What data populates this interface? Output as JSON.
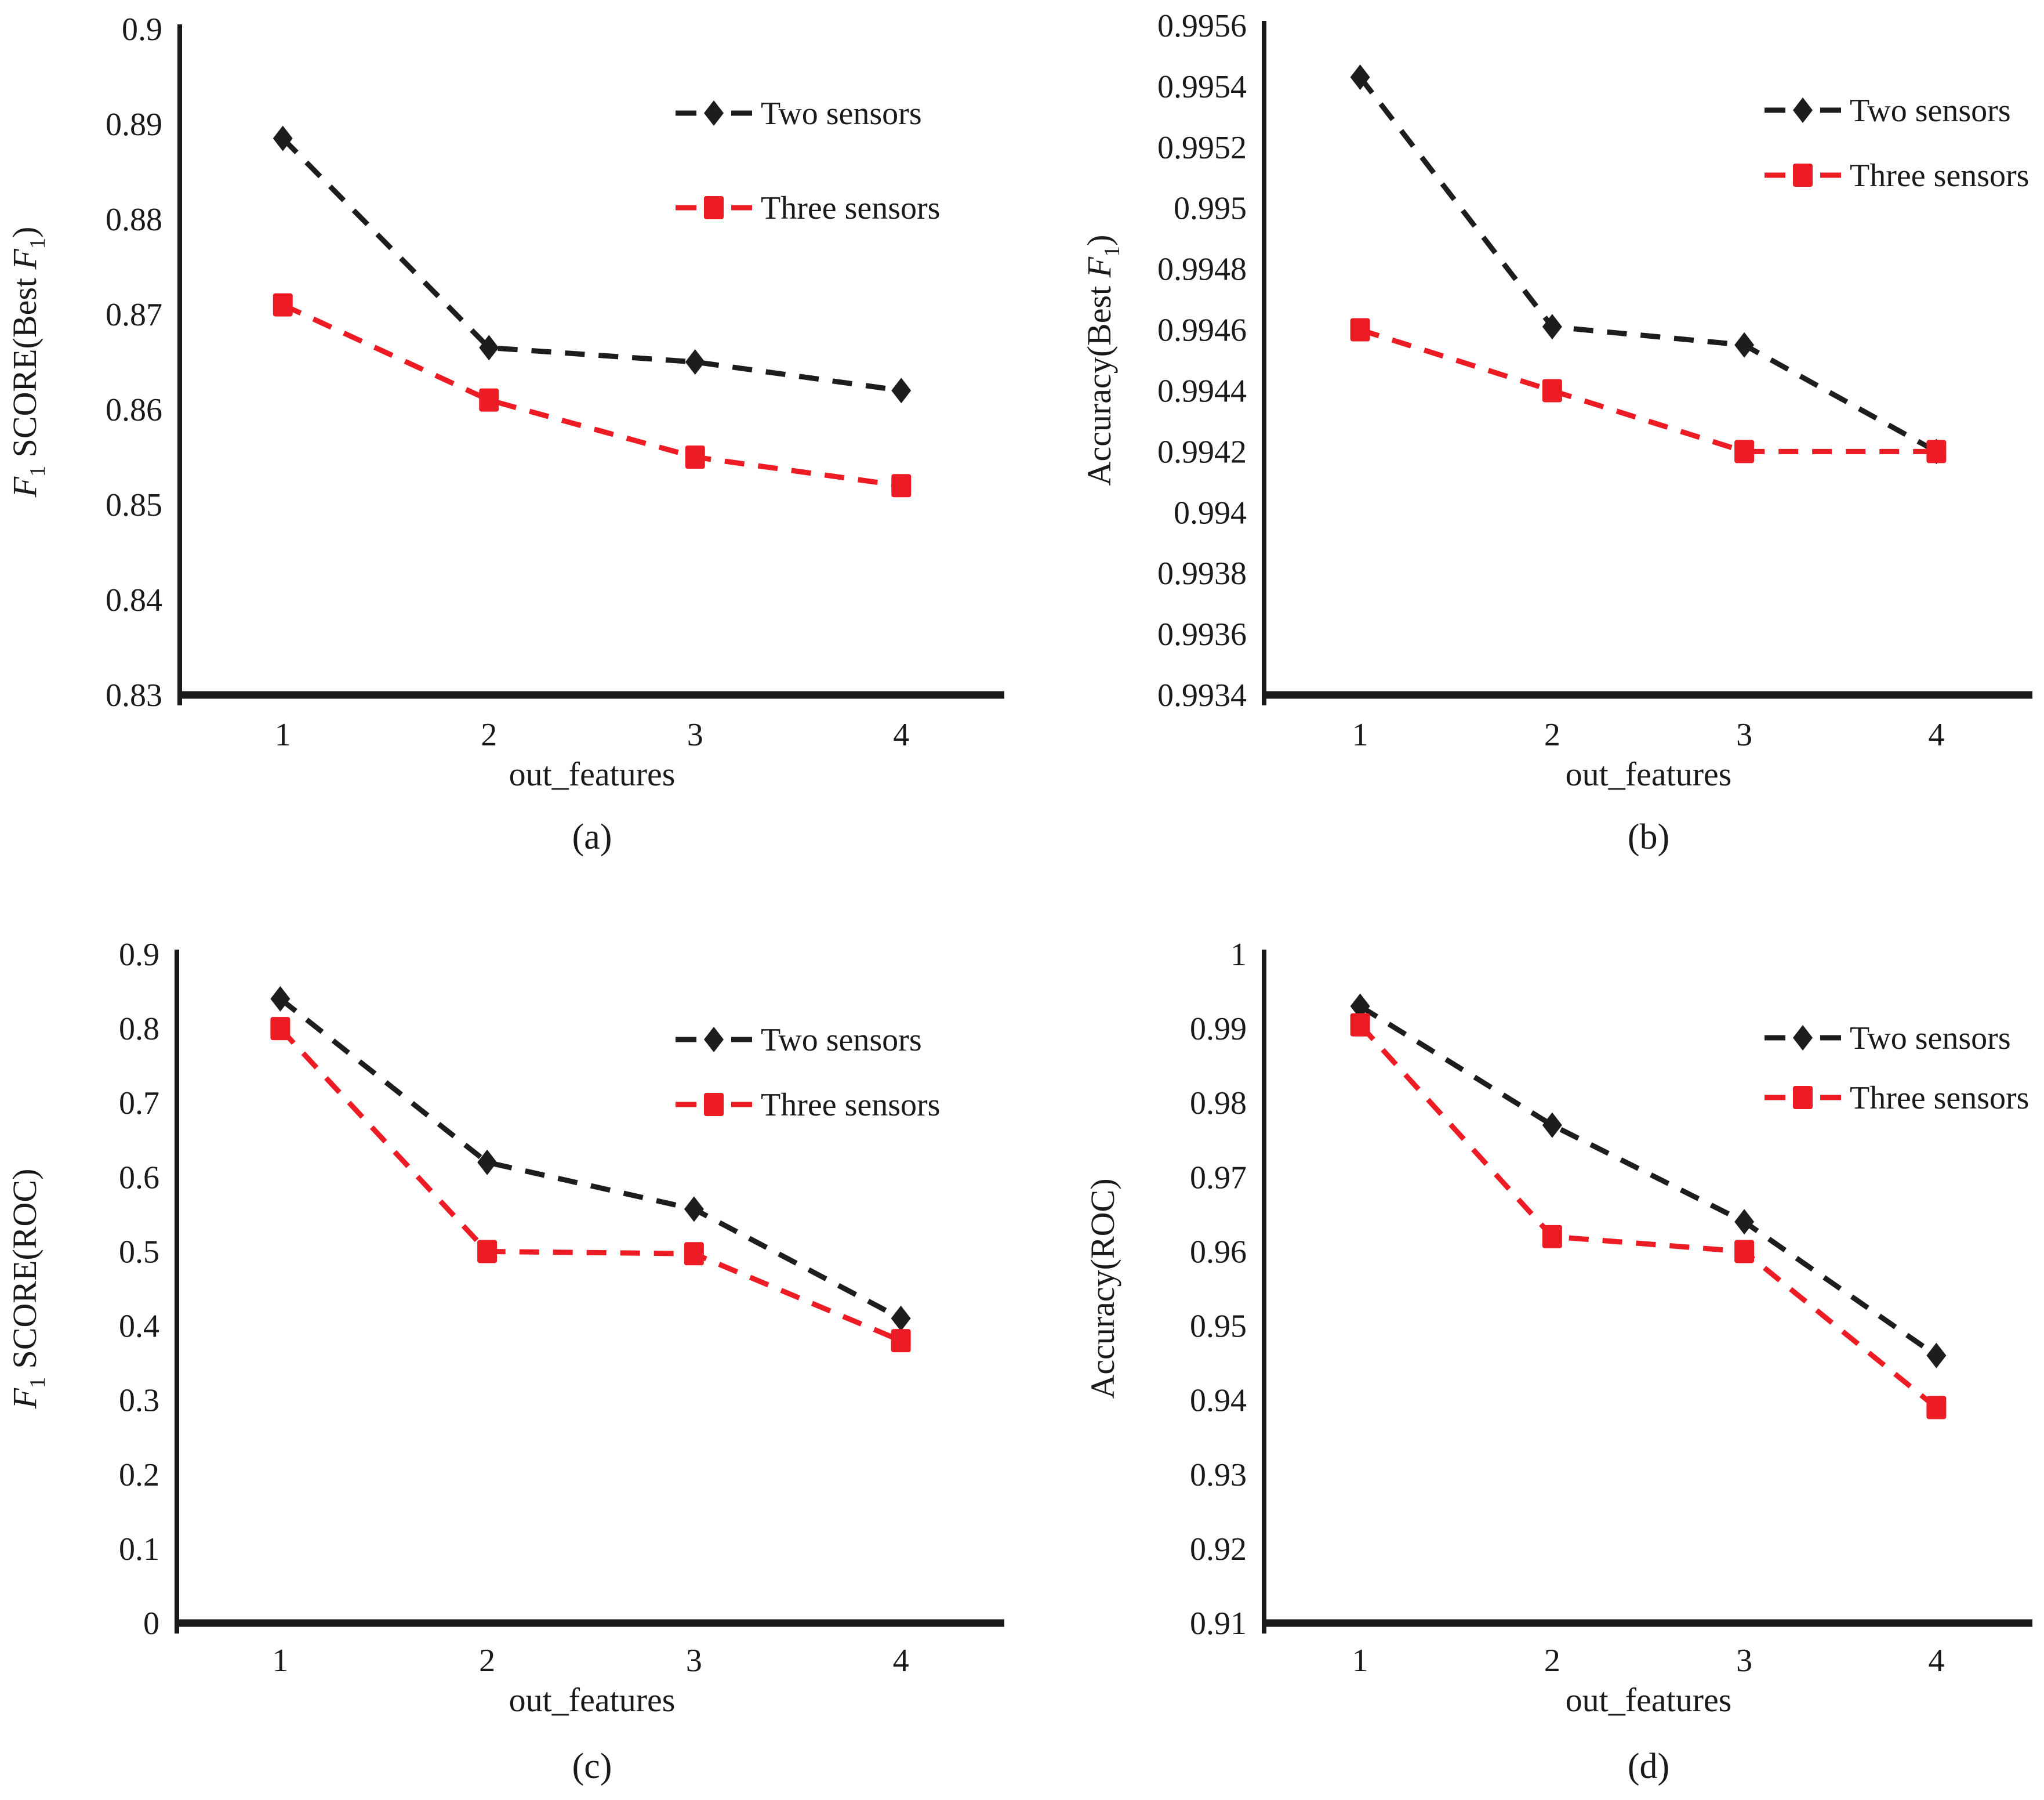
{
  "figure": {
    "background": "#ffffff",
    "text_color": "#1a1a1a",
    "series_black": "#1d1d1b",
    "series_red": "#ed1c24",
    "panel_captions": [
      "(a)",
      "(b)",
      "(c)",
      "(d)"
    ]
  },
  "chart_data": [
    {
      "id": "a",
      "type": "line",
      "caption": "(a)",
      "xlabel": "out_features",
      "ylabel": "F₁ SCORE(Best F₁)",
      "categories": [
        "1",
        "2",
        "3",
        "4"
      ],
      "ylim": [
        0.83,
        0.9
      ],
      "yticks": [
        "0.83",
        "0.84",
        "0.85",
        "0.86",
        "0.87",
        "0.88",
        "0.89",
        "0.9"
      ],
      "grid": false,
      "line_style": "dashed",
      "legend_position": "top-right",
      "series": [
        {
          "name": "Two sensors",
          "color": "#1d1d1b",
          "marker": "diamond",
          "values": [
            0.8885,
            0.8665,
            0.865,
            0.862
          ]
        },
        {
          "name": "Three sensors",
          "color": "#ed1c24",
          "marker": "square",
          "values": [
            0.871,
            0.861,
            0.855,
            0.852
          ]
        }
      ]
    },
    {
      "id": "b",
      "type": "line",
      "caption": "(b)",
      "xlabel": "out_features",
      "ylabel": "Accuracy(Best F₁)",
      "categories": [
        "1",
        "2",
        "3",
        "4"
      ],
      "ylim": [
        0.9934,
        0.9956
      ],
      "yticks": [
        "0.9934",
        "0.9936",
        "0.9938",
        "0.994",
        "0.9942",
        "0.9944",
        "0.9946",
        "0.9948",
        "0.995",
        "0.9952",
        "0.9954",
        "0.9956"
      ],
      "grid": false,
      "line_style": "dashed",
      "legend_position": "top-right",
      "series": [
        {
          "name": "Two sensors",
          "color": "#1d1d1b",
          "marker": "diamond",
          "values": [
            0.99543,
            0.99461,
            0.99455,
            0.9942
          ]
        },
        {
          "name": "Three sensors",
          "color": "#ed1c24",
          "marker": "square",
          "values": [
            0.9946,
            0.9944,
            0.9942,
            0.9942
          ]
        }
      ]
    },
    {
      "id": "c",
      "type": "line",
      "caption": "(c)",
      "xlabel": "out_features",
      "ylabel": "F₁ SCORE(ROC)",
      "categories": [
        "1",
        "2",
        "3",
        "4"
      ],
      "ylim": [
        0,
        0.9
      ],
      "yticks": [
        "0",
        "0.1",
        "0.2",
        "0.3",
        "0.4",
        "0.5",
        "0.6",
        "0.7",
        "0.8",
        "0.9"
      ],
      "grid": false,
      "line_style": "dashed",
      "legend_position": "top-right",
      "series": [
        {
          "name": "Two sensors",
          "color": "#1d1d1b",
          "marker": "diamond",
          "values": [
            0.84,
            0.62,
            0.557,
            0.41
          ]
        },
        {
          "name": "Three sensors",
          "color": "#ed1c24",
          "marker": "square",
          "values": [
            0.8,
            0.5,
            0.497,
            0.38
          ]
        }
      ]
    },
    {
      "id": "d",
      "type": "line",
      "caption": "(d)",
      "xlabel": "out_features",
      "ylabel": "Accuracy(ROC)",
      "categories": [
        "1",
        "2",
        "3",
        "4"
      ],
      "ylim": [
        0.91,
        1
      ],
      "yticks": [
        "0.91",
        "0.92",
        "0.93",
        "0.94",
        "0.95",
        "0.96",
        "0.97",
        "0.98",
        "0.99",
        "1"
      ],
      "grid": false,
      "line_style": "dashed",
      "legend_position": "top-right",
      "series": [
        {
          "name": "Two sensors",
          "color": "#1d1d1b",
          "marker": "diamond",
          "values": [
            0.993,
            0.977,
            0.964,
            0.946
          ]
        },
        {
          "name": "Three sensors",
          "color": "#ed1c24",
          "marker": "square",
          "values": [
            0.9905,
            0.962,
            0.96,
            0.939
          ]
        }
      ]
    }
  ]
}
